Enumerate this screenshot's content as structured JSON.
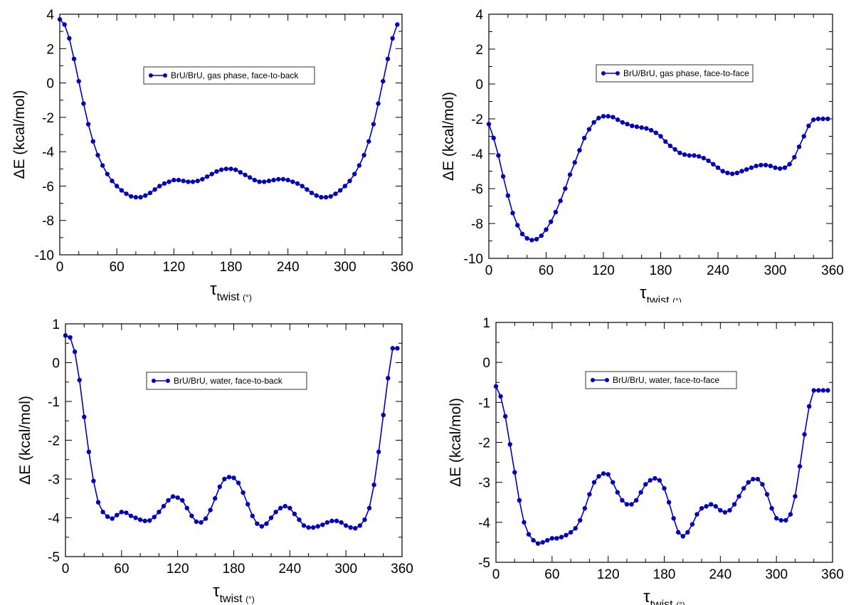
{
  "chart_data": [
    {
      "type": "line",
      "xlabel": "τ",
      "xlabel_sub": "twist",
      "xlabel_unit": "(°)",
      "ylabel": "ΔE (kcal/mol)",
      "xlim": [
        0,
        360
      ],
      "ylim": [
        -10,
        4
      ],
      "xticks": [
        0,
        60,
        120,
        180,
        240,
        300,
        360
      ],
      "yticks": [
        -10,
        -8,
        -6,
        -4,
        -2,
        0,
        2,
        4
      ],
      "color": "#0000b8",
      "grid": false,
      "legend_position": "top-center",
      "series": [
        {
          "name": "BrU/BrU, gas phase, face-to-back",
          "x": [
            0,
            5,
            10,
            15,
            20,
            25,
            30,
            35,
            40,
            45,
            50,
            55,
            60,
            65,
            70,
            75,
            80,
            85,
            90,
            95,
            100,
            105,
            110,
            115,
            120,
            125,
            130,
            135,
            140,
            145,
            150,
            155,
            160,
            165,
            170,
            175,
            180,
            185,
            190,
            195,
            200,
            205,
            210,
            215,
            220,
            225,
            230,
            235,
            240,
            245,
            250,
            255,
            260,
            265,
            270,
            275,
            280,
            285,
            290,
            295,
            300,
            305,
            310,
            315,
            320,
            325,
            330,
            335,
            340,
            345,
            350,
            355
          ],
          "y": [
            3.7,
            3.4,
            2.6,
            1.4,
            0.1,
            -1.2,
            -2.4,
            -3.4,
            -4.2,
            -4.8,
            -5.3,
            -5.7,
            -6.0,
            -6.25,
            -6.45,
            -6.6,
            -6.65,
            -6.65,
            -6.55,
            -6.4,
            -6.2,
            -6.0,
            -5.85,
            -5.75,
            -5.65,
            -5.65,
            -5.7,
            -5.75,
            -5.75,
            -5.7,
            -5.6,
            -5.45,
            -5.3,
            -5.15,
            -5.05,
            -5.0,
            -5.0,
            -5.05,
            -5.2,
            -5.35,
            -5.5,
            -5.65,
            -5.75,
            -5.75,
            -5.7,
            -5.65,
            -5.6,
            -5.6,
            -5.65,
            -5.75,
            -5.85,
            -6.0,
            -6.2,
            -6.4,
            -6.55,
            -6.65,
            -6.65,
            -6.6,
            -6.45,
            -6.25,
            -6.0,
            -5.7,
            -5.3,
            -4.8,
            -4.2,
            -3.4,
            -2.4,
            -1.2,
            0.1,
            1.4,
            2.6,
            3.4
          ]
        }
      ]
    },
    {
      "type": "line",
      "xlabel": "τ",
      "xlabel_sub": "twist",
      "xlabel_unit": "(°)",
      "ylabel": "ΔE (kcal/mol)",
      "xlim": [
        0,
        360
      ],
      "ylim": [
        -10,
        4
      ],
      "xticks": [
        0,
        60,
        120,
        180,
        240,
        300,
        360
      ],
      "yticks": [
        -10,
        -8,
        -6,
        -4,
        -2,
        0,
        2,
        4
      ],
      "color": "#0000b8",
      "grid": false,
      "legend_position": "top-center",
      "series": [
        {
          "name": "BrU/BrU, gas phase, face-to-face",
          "x": [
            0,
            5,
            10,
            15,
            20,
            25,
            30,
            35,
            40,
            45,
            50,
            55,
            60,
            65,
            70,
            75,
            80,
            85,
            90,
            95,
            100,
            105,
            110,
            115,
            120,
            125,
            130,
            135,
            140,
            145,
            150,
            155,
            160,
            165,
            170,
            175,
            180,
            185,
            190,
            195,
            200,
            205,
            210,
            215,
            220,
            225,
            230,
            235,
            240,
            245,
            250,
            255,
            260,
            265,
            270,
            275,
            280,
            285,
            290,
            295,
            300,
            305,
            310,
            315,
            320,
            325,
            330,
            335,
            340,
            345,
            350,
            355
          ],
          "y": [
            -2.3,
            -3.1,
            -4.1,
            -5.3,
            -6.4,
            -7.4,
            -8.1,
            -8.6,
            -8.85,
            -8.95,
            -8.9,
            -8.7,
            -8.35,
            -7.9,
            -7.35,
            -6.7,
            -6.0,
            -5.2,
            -4.5,
            -3.8,
            -3.1,
            -2.6,
            -2.2,
            -1.95,
            -1.85,
            -1.85,
            -1.9,
            -2.05,
            -2.2,
            -2.3,
            -2.4,
            -2.45,
            -2.5,
            -2.55,
            -2.65,
            -2.8,
            -3.0,
            -3.3,
            -3.55,
            -3.75,
            -3.95,
            -4.05,
            -4.1,
            -4.1,
            -4.15,
            -4.25,
            -4.4,
            -4.6,
            -4.8,
            -5.0,
            -5.1,
            -5.15,
            -5.1,
            -5.0,
            -4.9,
            -4.8,
            -4.7,
            -4.65,
            -4.65,
            -4.7,
            -4.8,
            -4.85,
            -4.8,
            -4.6,
            -4.2,
            -3.6,
            -3.0,
            -2.4,
            -2.05,
            -2.0,
            -2.0,
            -2.0
          ]
        }
      ]
    },
    {
      "type": "line",
      "xlabel": "τ",
      "xlabel_sub": "twist",
      "xlabel_unit": "(°)",
      "ylabel": "ΔE (kcal/mol)",
      "xlim": [
        0,
        360
      ],
      "ylim": [
        -5,
        1
      ],
      "xticks": [
        0,
        60,
        120,
        180,
        240,
        300,
        360
      ],
      "yticks": [
        -5,
        -4,
        -3,
        -2,
        -1,
        0,
        1
      ],
      "color": "#0000b8",
      "grid": false,
      "legend_position": "top-center",
      "series": [
        {
          "name": "BrU/BrU, water, face-to-back",
          "x": [
            0,
            5,
            10,
            15,
            20,
            25,
            30,
            35,
            40,
            45,
            50,
            55,
            60,
            65,
            70,
            75,
            80,
            85,
            90,
            95,
            100,
            105,
            110,
            115,
            120,
            125,
            130,
            135,
            140,
            145,
            150,
            155,
            160,
            165,
            170,
            175,
            180,
            185,
            190,
            195,
            200,
            205,
            210,
            215,
            220,
            225,
            230,
            235,
            240,
            245,
            250,
            255,
            260,
            265,
            270,
            275,
            280,
            285,
            290,
            295,
            300,
            305,
            310,
            315,
            320,
            325,
            330,
            335,
            340,
            345,
            350,
            355
          ],
          "y": [
            0.7,
            0.65,
            0.28,
            -0.45,
            -1.4,
            -2.3,
            -3.05,
            -3.6,
            -3.85,
            -3.97,
            -4.02,
            -3.93,
            -3.85,
            -3.87,
            -3.95,
            -4.0,
            -4.05,
            -4.08,
            -4.07,
            -3.98,
            -3.85,
            -3.7,
            -3.55,
            -3.45,
            -3.48,
            -3.55,
            -3.75,
            -3.95,
            -4.1,
            -4.12,
            -4.02,
            -3.8,
            -3.5,
            -3.2,
            -3.0,
            -2.95,
            -2.97,
            -3.1,
            -3.35,
            -3.65,
            -3.95,
            -4.15,
            -4.22,
            -4.15,
            -4.0,
            -3.85,
            -3.75,
            -3.7,
            -3.75,
            -3.9,
            -4.05,
            -4.2,
            -4.25,
            -4.25,
            -4.22,
            -4.18,
            -4.12,
            -4.08,
            -4.08,
            -4.12,
            -4.2,
            -4.25,
            -4.27,
            -4.2,
            -4.05,
            -3.75,
            -3.15,
            -2.3,
            -1.35,
            -0.4,
            0.37,
            0.37
          ]
        }
      ]
    },
    {
      "type": "line",
      "xlabel": "τ",
      "xlabel_sub": "twist",
      "xlabel_unit": "(°)",
      "ylabel": "ΔE (kcal/mol)",
      "xlim": [
        0,
        360
      ],
      "ylim": [
        -5,
        1
      ],
      "xticks": [
        0,
        60,
        120,
        180,
        240,
        300,
        360
      ],
      "yticks": [
        -5,
        -4,
        -3,
        -2,
        -1,
        0,
        1
      ],
      "color": "#0000b8",
      "grid": false,
      "legend_position": "top-center",
      "series": [
        {
          "name": "BrU/BrU, water, face-to-face",
          "x": [
            0,
            5,
            10,
            15,
            20,
            25,
            30,
            35,
            40,
            45,
            50,
            55,
            60,
            65,
            70,
            75,
            80,
            85,
            90,
            95,
            100,
            105,
            110,
            115,
            120,
            125,
            130,
            135,
            140,
            145,
            150,
            155,
            160,
            165,
            170,
            175,
            180,
            185,
            190,
            195,
            200,
            205,
            210,
            215,
            220,
            225,
            230,
            235,
            240,
            245,
            250,
            255,
            260,
            265,
            270,
            275,
            280,
            285,
            290,
            295,
            300,
            305,
            310,
            315,
            320,
            325,
            330,
            335,
            340,
            345,
            350,
            355
          ],
          "y": [
            -0.6,
            -0.85,
            -1.35,
            -2.05,
            -2.75,
            -3.45,
            -4.0,
            -4.3,
            -4.45,
            -4.53,
            -4.5,
            -4.45,
            -4.4,
            -4.4,
            -4.37,
            -4.32,
            -4.25,
            -4.15,
            -3.95,
            -3.65,
            -3.3,
            -3.0,
            -2.85,
            -2.78,
            -2.8,
            -3.0,
            -3.25,
            -3.45,
            -3.55,
            -3.55,
            -3.45,
            -3.25,
            -3.05,
            -2.95,
            -2.9,
            -2.95,
            -3.15,
            -3.5,
            -3.9,
            -4.25,
            -4.35,
            -4.25,
            -4.05,
            -3.8,
            -3.65,
            -3.6,
            -3.55,
            -3.6,
            -3.7,
            -3.75,
            -3.7,
            -3.55,
            -3.35,
            -3.15,
            -3.0,
            -2.92,
            -2.92,
            -3.05,
            -3.3,
            -3.65,
            -3.9,
            -3.95,
            -3.95,
            -3.8,
            -3.35,
            -2.6,
            -1.8,
            -1.1,
            -0.7,
            -0.7,
            -0.7,
            -0.7
          ]
        }
      ]
    }
  ]
}
